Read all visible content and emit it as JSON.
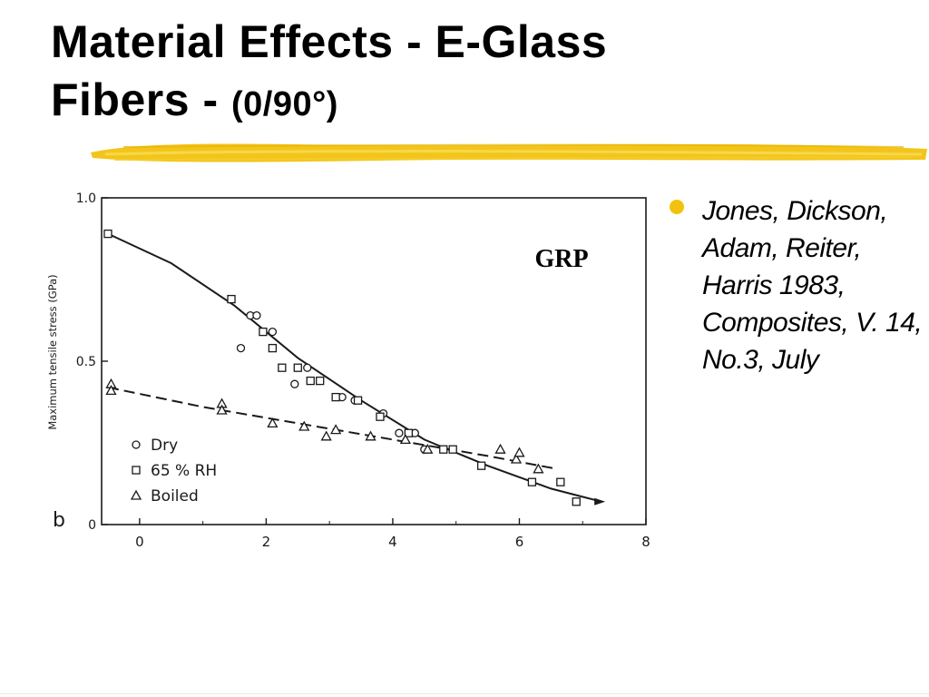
{
  "slide": {
    "title_line1": "Material Effects - E-Glass",
    "title_line2_main": "Fibers - ",
    "title_line2_small": "(0/90°)",
    "bullet": "Jones, Dickson, Adam, Reiter, Harris 1983, Composites, V. 14, No.3, July",
    "accent_color": "#f2c20f"
  },
  "chart_data": {
    "type": "scatter",
    "title": "GRP",
    "panel_label": "b",
    "ylabel": "Maximum tensile stress (GPa)",
    "xlabel": "",
    "xlim": [
      -0.6,
      8
    ],
    "ylim": [
      0,
      1.0
    ],
    "x_ticks": [
      "0",
      "2",
      "4",
      "6",
      "8"
    ],
    "y_ticks": [
      "0",
      "0.5",
      "1.0"
    ],
    "legend_position": "bottom-left",
    "series": [
      {
        "name": "Dry",
        "marker": "circle",
        "points": [
          [
            1.6,
            0.54
          ],
          [
            1.75,
            0.64
          ],
          [
            1.85,
            0.64
          ],
          [
            2.1,
            0.59
          ],
          [
            2.45,
            0.43
          ],
          [
            2.65,
            0.48
          ],
          [
            3.2,
            0.39
          ],
          [
            3.4,
            0.38
          ],
          [
            3.85,
            0.34
          ],
          [
            4.1,
            0.28
          ],
          [
            4.35,
            0.28
          ],
          [
            4.5,
            0.23
          ]
        ]
      },
      {
        "name": "65 % RH",
        "marker": "square",
        "points": [
          [
            -0.5,
            0.89
          ],
          [
            1.45,
            0.69
          ],
          [
            1.95,
            0.59
          ],
          [
            2.1,
            0.54
          ],
          [
            2.25,
            0.48
          ],
          [
            2.5,
            0.48
          ],
          [
            2.7,
            0.44
          ],
          [
            2.85,
            0.44
          ],
          [
            3.1,
            0.39
          ],
          [
            3.45,
            0.38
          ],
          [
            3.8,
            0.33
          ],
          [
            4.25,
            0.28
          ],
          [
            4.8,
            0.23
          ],
          [
            4.95,
            0.23
          ],
          [
            5.4,
            0.18
          ],
          [
            6.2,
            0.13
          ],
          [
            6.65,
            0.13
          ],
          [
            6.9,
            0.07
          ]
        ]
      },
      {
        "name": "Boiled",
        "marker": "triangle",
        "points": [
          [
            -0.45,
            0.43
          ],
          [
            -0.45,
            0.41
          ],
          [
            1.3,
            0.37
          ],
          [
            1.3,
            0.35
          ],
          [
            2.1,
            0.31
          ],
          [
            2.6,
            0.3
          ],
          [
            2.95,
            0.27
          ],
          [
            3.1,
            0.29
          ],
          [
            3.65,
            0.27
          ],
          [
            4.2,
            0.26
          ],
          [
            4.55,
            0.23
          ],
          [
            5.7,
            0.23
          ],
          [
            5.95,
            0.2
          ],
          [
            6.0,
            0.22
          ],
          [
            6.3,
            0.17
          ]
        ]
      }
    ],
    "fit_lines": [
      {
        "style": "solid",
        "points": [
          [
            -0.5,
            0.89
          ],
          [
            0.5,
            0.8
          ],
          [
            1.5,
            0.67
          ],
          [
            2.5,
            0.51
          ],
          [
            3.5,
            0.38
          ],
          [
            4.5,
            0.26
          ],
          [
            5.5,
            0.18
          ],
          [
            6.5,
            0.11
          ],
          [
            7.3,
            0.07
          ]
        ]
      },
      {
        "style": "dashed",
        "points": [
          [
            -0.5,
            0.42
          ],
          [
            1.0,
            0.36
          ],
          [
            2.5,
            0.31
          ],
          [
            4.0,
            0.26
          ],
          [
            5.5,
            0.21
          ],
          [
            6.6,
            0.17
          ]
        ]
      }
    ]
  }
}
